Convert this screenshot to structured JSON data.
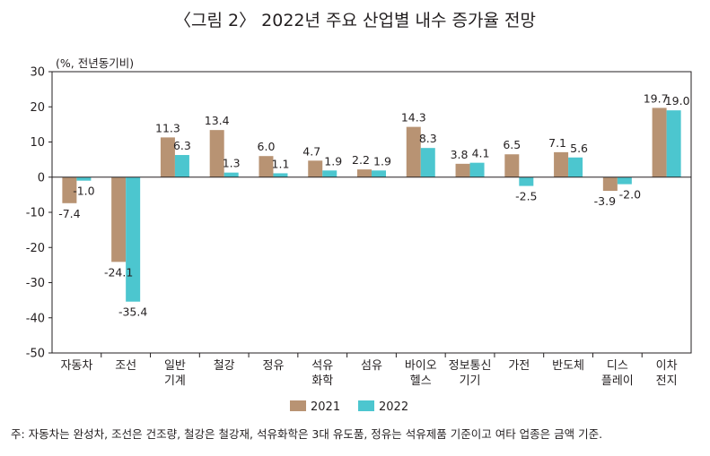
{
  "chart_data": {
    "type": "bar",
    "title": "〈그림 2〉 2022년 주요 산업별 내수 증가율 전망",
    "ylabel": "(%, 전년동기비)",
    "xlabel": "",
    "ylim": [
      -50,
      30
    ],
    "yticks": [
      30,
      20,
      10,
      0,
      -10,
      -20,
      -30,
      -40,
      -50
    ],
    "categories": [
      [
        "자동차"
      ],
      [
        "조선"
      ],
      [
        "일반",
        "기계"
      ],
      [
        "철강"
      ],
      [
        "정유"
      ],
      [
        "석유",
        "화학"
      ],
      [
        "섬유"
      ],
      [
        "바이오",
        "헬스"
      ],
      [
        "정보통신",
        "기기"
      ],
      [
        "가전"
      ],
      [
        "반도체"
      ],
      [
        "디스",
        "플레이"
      ],
      [
        "이차",
        "전지"
      ]
    ],
    "series": [
      {
        "name": "2021",
        "color": "#b89373",
        "values": [
          -7.4,
          -24.1,
          11.3,
          13.4,
          6.0,
          4.7,
          2.2,
          14.3,
          3.8,
          6.5,
          7.1,
          -3.9,
          19.7
        ],
        "labels": [
          "-7.4",
          "-24.1",
          "11.3",
          "13.4",
          "6.0",
          "4.7",
          "2.2",
          "14.3",
          "3.8",
          "6.5",
          "7.1",
          "-3.9",
          "19.7"
        ]
      },
      {
        "name": "2022",
        "color": "#4cc6cf",
        "values": [
          -1.0,
          -35.4,
          6.3,
          1.3,
          1.1,
          1.9,
          1.9,
          8.3,
          4.1,
          -2.5,
          5.6,
          -2.0,
          19.0
        ],
        "labels": [
          "-1.0",
          "-35.4",
          "6.3",
          "1.3",
          "1.1",
          "1.9",
          "1.9",
          "8.3",
          "4.1",
          "-2.5",
          "5.6",
          "-2.0",
          "19.0"
        ]
      }
    ],
    "legend_position": "bottom-center",
    "grid": false
  },
  "footnote": "주: 자동차는 완성차, 조선은 건조량, 철강은 철강재, 석유화학은 3대 유도품, 정유는 석유제품 기준이고 여타 업종은 금액 기준."
}
